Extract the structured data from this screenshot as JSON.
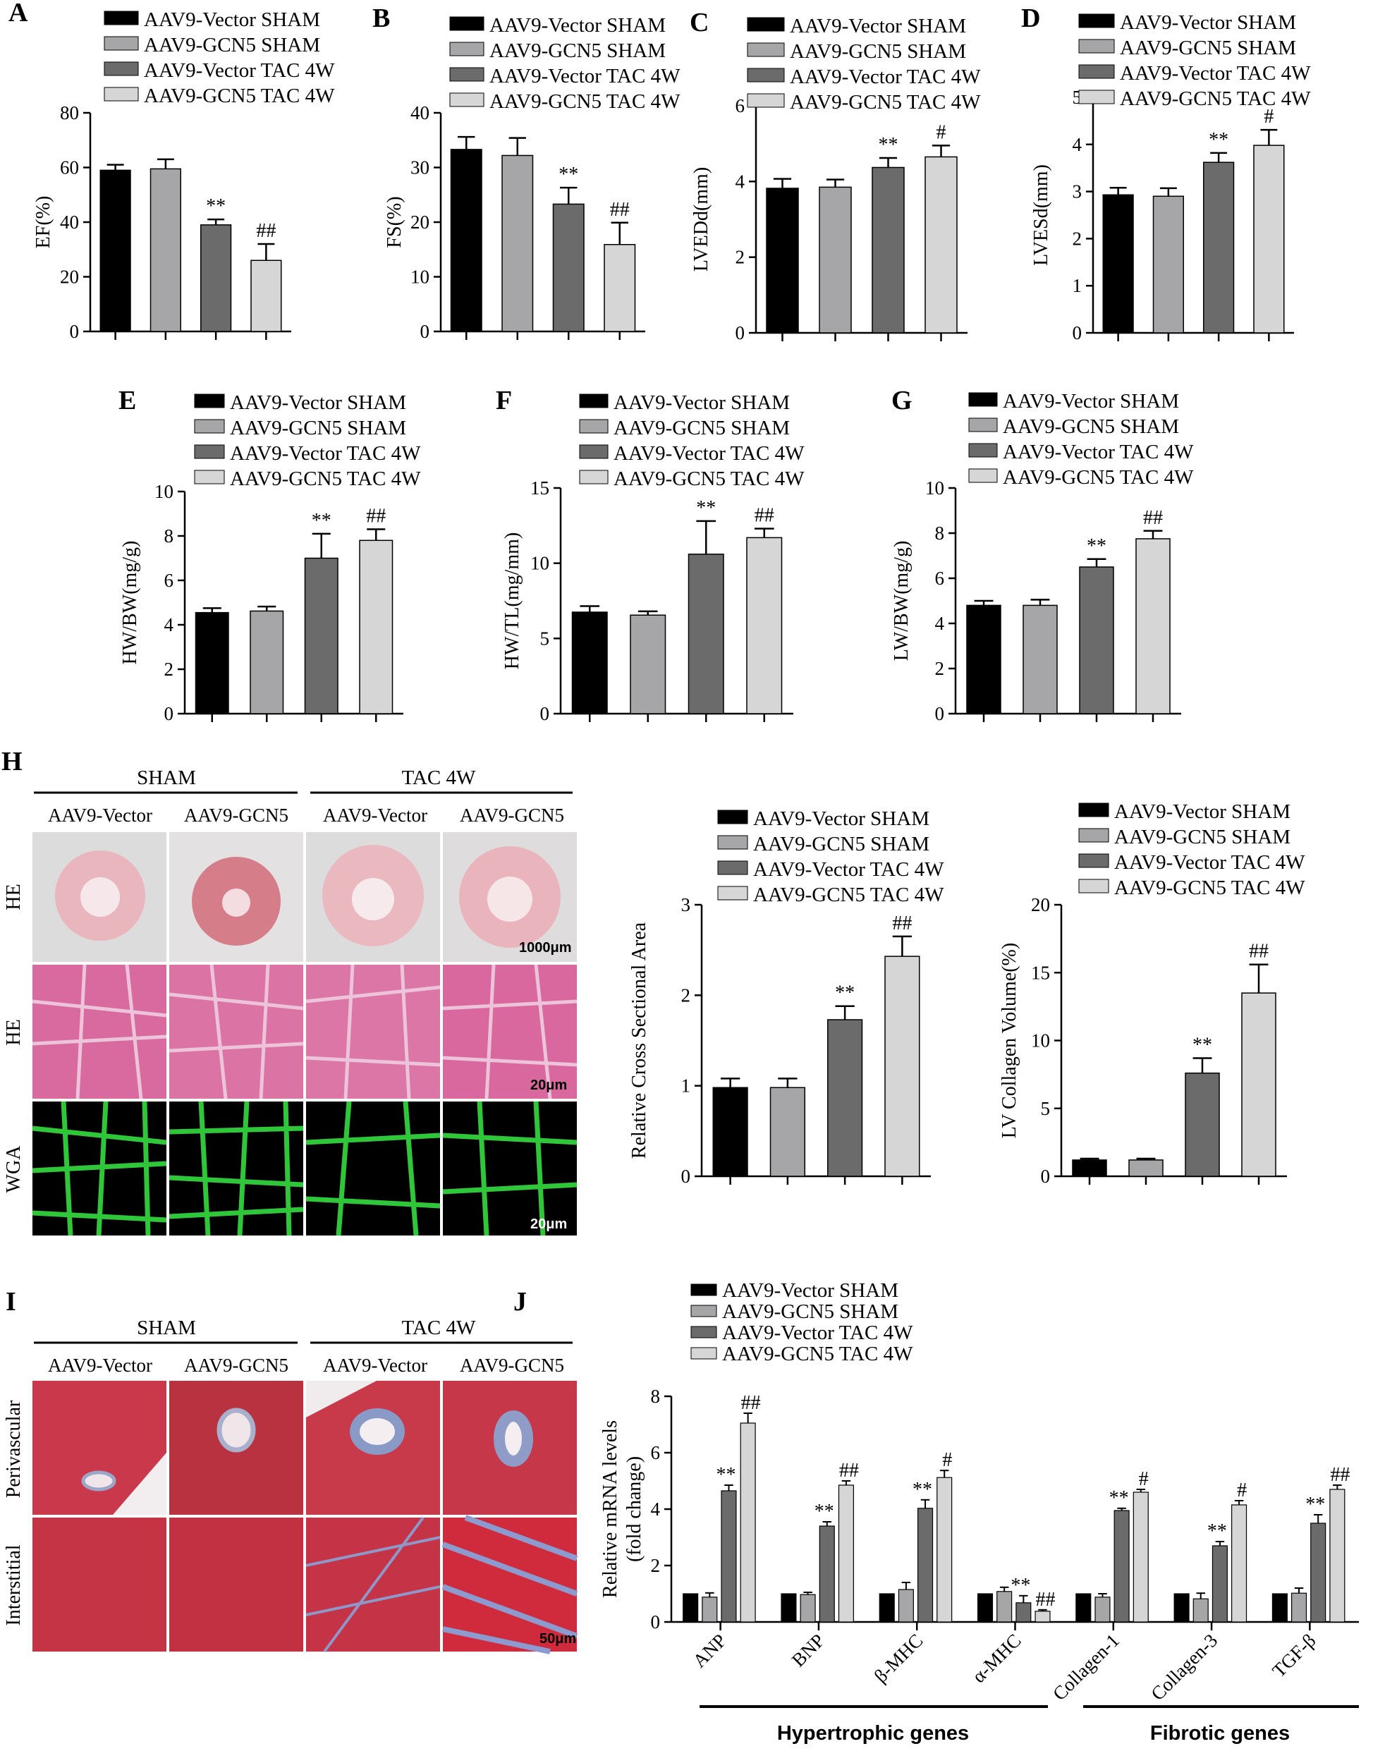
{
  "legend_series": [
    "AAV9-Vector SHAM",
    "AAV9-GCN5 SHAM",
    "AAV9-Vector TAC 4W",
    "AAV9-GCN5 TAC 4W"
  ],
  "colors": [
    "#000000",
    "#a6a6a9",
    "#6b6b6b",
    "#d6d6d6"
  ],
  "panels": {
    "A": "A",
    "B": "B",
    "C": "C",
    "D": "D",
    "E": "E",
    "F": "F",
    "G": "G",
    "H": "H",
    "I": "I",
    "J": "J"
  },
  "histology": {
    "group_sham": "SHAM",
    "group_tac": "TAC 4W",
    "col_vector": "AAV9-Vector",
    "col_gcn5": "AAV9-GCN5",
    "H": {
      "rows": [
        "HE",
        "HE",
        "WGA"
      ],
      "scale_bars": [
        "1000μm",
        "20μm",
        "20μm"
      ],
      "row_colors": [
        "#e8c8cc",
        "#d9709e",
        "#000000"
      ]
    },
    "I": {
      "rows": [
        "Perivascular",
        "Interstitial"
      ],
      "scale_bars": [
        "50μm"
      ],
      "row_colors": [
        "#c43a48",
        "#c32c3c"
      ]
    }
  },
  "chart_data": [
    {
      "id": "A",
      "type": "bar",
      "ylabel": "EF(%)",
      "ylim": [
        0,
        80
      ],
      "yticks": [
        0,
        20,
        40,
        60,
        80
      ],
      "values": [
        59,
        59.5,
        39,
        26
      ],
      "errors": [
        2,
        3.5,
        2,
        6
      ],
      "sig": [
        "",
        "",
        "**",
        "##"
      ]
    },
    {
      "id": "B",
      "type": "bar",
      "ylabel": "FS(%)",
      "ylim": [
        0,
        40
      ],
      "yticks": [
        0,
        10,
        20,
        30,
        40
      ],
      "values": [
        33.3,
        32.2,
        23.3,
        15.9
      ],
      "errors": [
        2.3,
        3.2,
        3,
        4
      ],
      "sig": [
        "",
        "",
        "**",
        "##"
      ]
    },
    {
      "id": "C",
      "type": "bar",
      "ylabel": "LVEDd(mm)",
      "ylim": [
        0,
        6
      ],
      "yticks": [
        0,
        2,
        4,
        6
      ],
      "values": [
        3.82,
        3.85,
        4.37,
        4.65
      ],
      "errors": [
        0.25,
        0.2,
        0.25,
        0.3
      ],
      "sig": [
        "",
        "",
        "**",
        "#"
      ]
    },
    {
      "id": "D",
      "type": "bar",
      "ylabel": "LVESd(mm)",
      "ylim": [
        0,
        5
      ],
      "yticks": [
        0,
        1,
        2,
        3,
        4,
        5
      ],
      "values": [
        2.93,
        2.9,
        3.62,
        3.98
      ],
      "errors": [
        0.15,
        0.17,
        0.2,
        0.33
      ],
      "sig": [
        "",
        "",
        "**",
        "#"
      ]
    },
    {
      "id": "E",
      "type": "bar",
      "ylabel": "HW/BW(mg/g)",
      "ylim": [
        0,
        10
      ],
      "yticks": [
        0,
        2,
        4,
        6,
        8,
        10
      ],
      "values": [
        4.55,
        4.62,
        7.0,
        7.8
      ],
      "errors": [
        0.2,
        0.2,
        1.1,
        0.5
      ],
      "sig": [
        "",
        "",
        "**",
        "##"
      ]
    },
    {
      "id": "F",
      "type": "bar",
      "ylabel": "HW/TL(mg/mm)",
      "ylim": [
        0,
        15
      ],
      "yticks": [
        0,
        5,
        10,
        15
      ],
      "values": [
        6.75,
        6.55,
        10.6,
        11.7
      ],
      "errors": [
        0.4,
        0.25,
        2.2,
        0.6
      ],
      "sig": [
        "",
        "",
        "**",
        "##"
      ]
    },
    {
      "id": "G",
      "type": "bar",
      "ylabel": "LW/BW(mg/g)",
      "ylim": [
        0,
        10
      ],
      "yticks": [
        0,
        2,
        4,
        6,
        8,
        10
      ],
      "values": [
        4.8,
        4.8,
        6.5,
        7.75
      ],
      "errors": [
        0.2,
        0.25,
        0.35,
        0.35
      ],
      "sig": [
        "",
        "",
        "**",
        "##"
      ]
    },
    {
      "id": "H1",
      "type": "bar",
      "ylabel": "Relative Cross Sectional Area",
      "ylim": [
        0,
        3
      ],
      "yticks": [
        0,
        1,
        2,
        3
      ],
      "values": [
        0.98,
        0.98,
        1.73,
        2.43
      ],
      "errors": [
        0.1,
        0.1,
        0.15,
        0.22
      ],
      "sig": [
        "",
        "",
        "**",
        "##"
      ]
    },
    {
      "id": "H2",
      "type": "bar",
      "ylabel": "LV Collagen Volume(%)",
      "ylim": [
        0,
        20
      ],
      "yticks": [
        0,
        5,
        10,
        15,
        20
      ],
      "values": [
        1.2,
        1.2,
        7.6,
        13.5
      ],
      "errors": [
        0.1,
        0.1,
        1.1,
        2.1
      ],
      "sig": [
        "",
        "",
        "**",
        "##"
      ]
    },
    {
      "id": "J",
      "type": "bar",
      "ylabel": "Relative mRNA levels (fold change)",
      "ylim": [
        0,
        8
      ],
      "yticks": [
        0,
        2,
        4,
        6,
        8
      ],
      "categories": [
        "ANP",
        "BNP",
        "β-MHC",
        "α-MHC",
        "Collagen-1",
        "Collagen-3",
        "TGF-β"
      ],
      "series": [
        {
          "name": "AAV9-Vector SHAM",
          "values": [
            1,
            1,
            1,
            1,
            1,
            1,
            1
          ],
          "errors": [
            0,
            0,
            0,
            0,
            0,
            0,
            0
          ]
        },
        {
          "name": "AAV9-GCN5 SHAM",
          "values": [
            0.88,
            0.97,
            1.15,
            1.08,
            0.88,
            0.82,
            1.02
          ],
          "errors": [
            0.15,
            0.08,
            0.25,
            0.15,
            0.12,
            0.2,
            0.18
          ]
        },
        {
          "name": "AAV9-Vector TAC 4W",
          "values": [
            4.65,
            3.4,
            4.03,
            0.68,
            3.95,
            2.7,
            3.5
          ],
          "errors": [
            0.2,
            0.15,
            0.3,
            0.25,
            0.08,
            0.15,
            0.3
          ]
        },
        {
          "name": "AAV9-GCN5 TAC 4W",
          "values": [
            7.05,
            4.85,
            5.12,
            0.38,
            4.6,
            4.15,
            4.7
          ],
          "errors": [
            0.35,
            0.15,
            0.25,
            0.05,
            0.1,
            0.15,
            0.15
          ]
        }
      ],
      "sig_tac_vector": [
        "**",
        "**",
        "**",
        "**",
        "**",
        "**",
        "**"
      ],
      "sig_tac_gcn5": [
        "##",
        "##",
        "#",
        "##",
        "#",
        "#",
        "##"
      ],
      "gene_groups": [
        "Hypertrophic genes",
        "Fibrotic genes"
      ]
    }
  ]
}
